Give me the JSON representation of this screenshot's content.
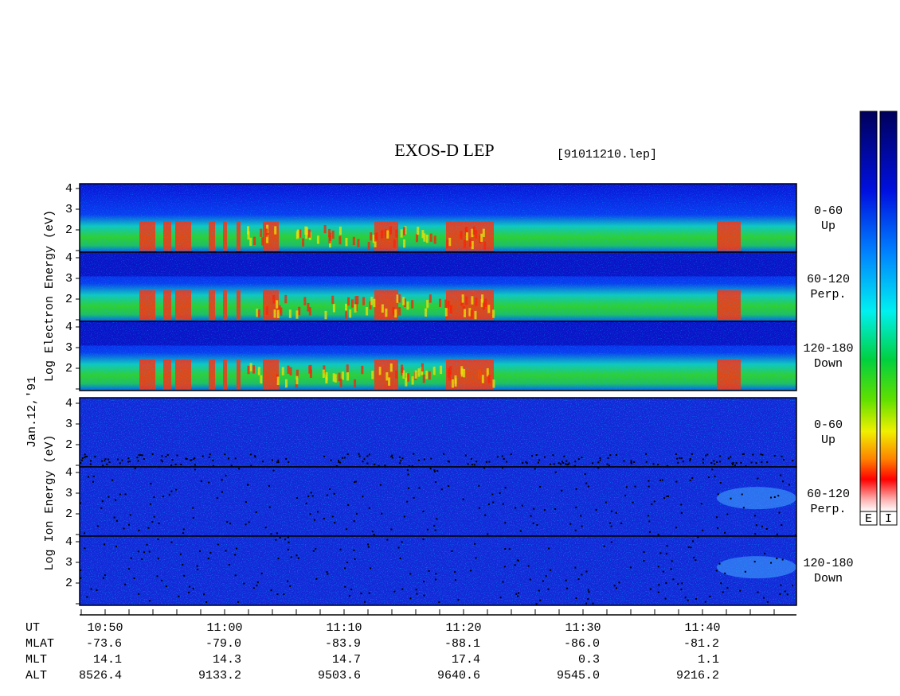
{
  "title": "EXOS-D LEP",
  "file": "[91011210.lep]",
  "date": "Jan.12,'91",
  "electron_axis_label": "Log Electron Energy (eV)",
  "ion_axis_label": "Log Ion Energy (eV)",
  "panels": [
    {
      "pitch": "0-60",
      "direction": "Up",
      "yticks": [
        4,
        3,
        2
      ]
    },
    {
      "pitch": "60-120",
      "direction": "Perp.",
      "yticks": [
        4,
        3,
        2
      ]
    },
    {
      "pitch": "120-180",
      "direction": "Down",
      "yticks": [
        4,
        3,
        2
      ]
    },
    {
      "pitch": "0-60",
      "direction": "Up",
      "yticks": [
        4,
        3,
        2
      ]
    },
    {
      "pitch": "60-120",
      "direction": "Perp.",
      "yticks": [
        4,
        3,
        2
      ]
    },
    {
      "pitch": "120-180",
      "direction": "Down",
      "yticks": [
        4,
        3,
        2
      ]
    }
  ],
  "colorbar_labels": [
    "E",
    "I"
  ],
  "rows": [
    {
      "name": "UT",
      "values": [
        "10:50",
        "11:00",
        "11:10",
        "11:20",
        "11:30",
        "11:40"
      ]
    },
    {
      "name": "MLAT",
      "values": [
        "-73.6",
        "-79.0",
        "-83.9",
        "-88.1",
        "-86.0",
        "-81.2"
      ]
    },
    {
      "name": "MLT",
      "values": [
        "14.1",
        "14.3",
        "14.7",
        "17.4",
        "0.3",
        "1.1"
      ]
    },
    {
      "name": "ALT",
      "values": [
        "8526.4",
        "9133.2",
        "9503.6",
        "9640.6",
        "9545.0",
        "9216.2"
      ]
    }
  ]
}
